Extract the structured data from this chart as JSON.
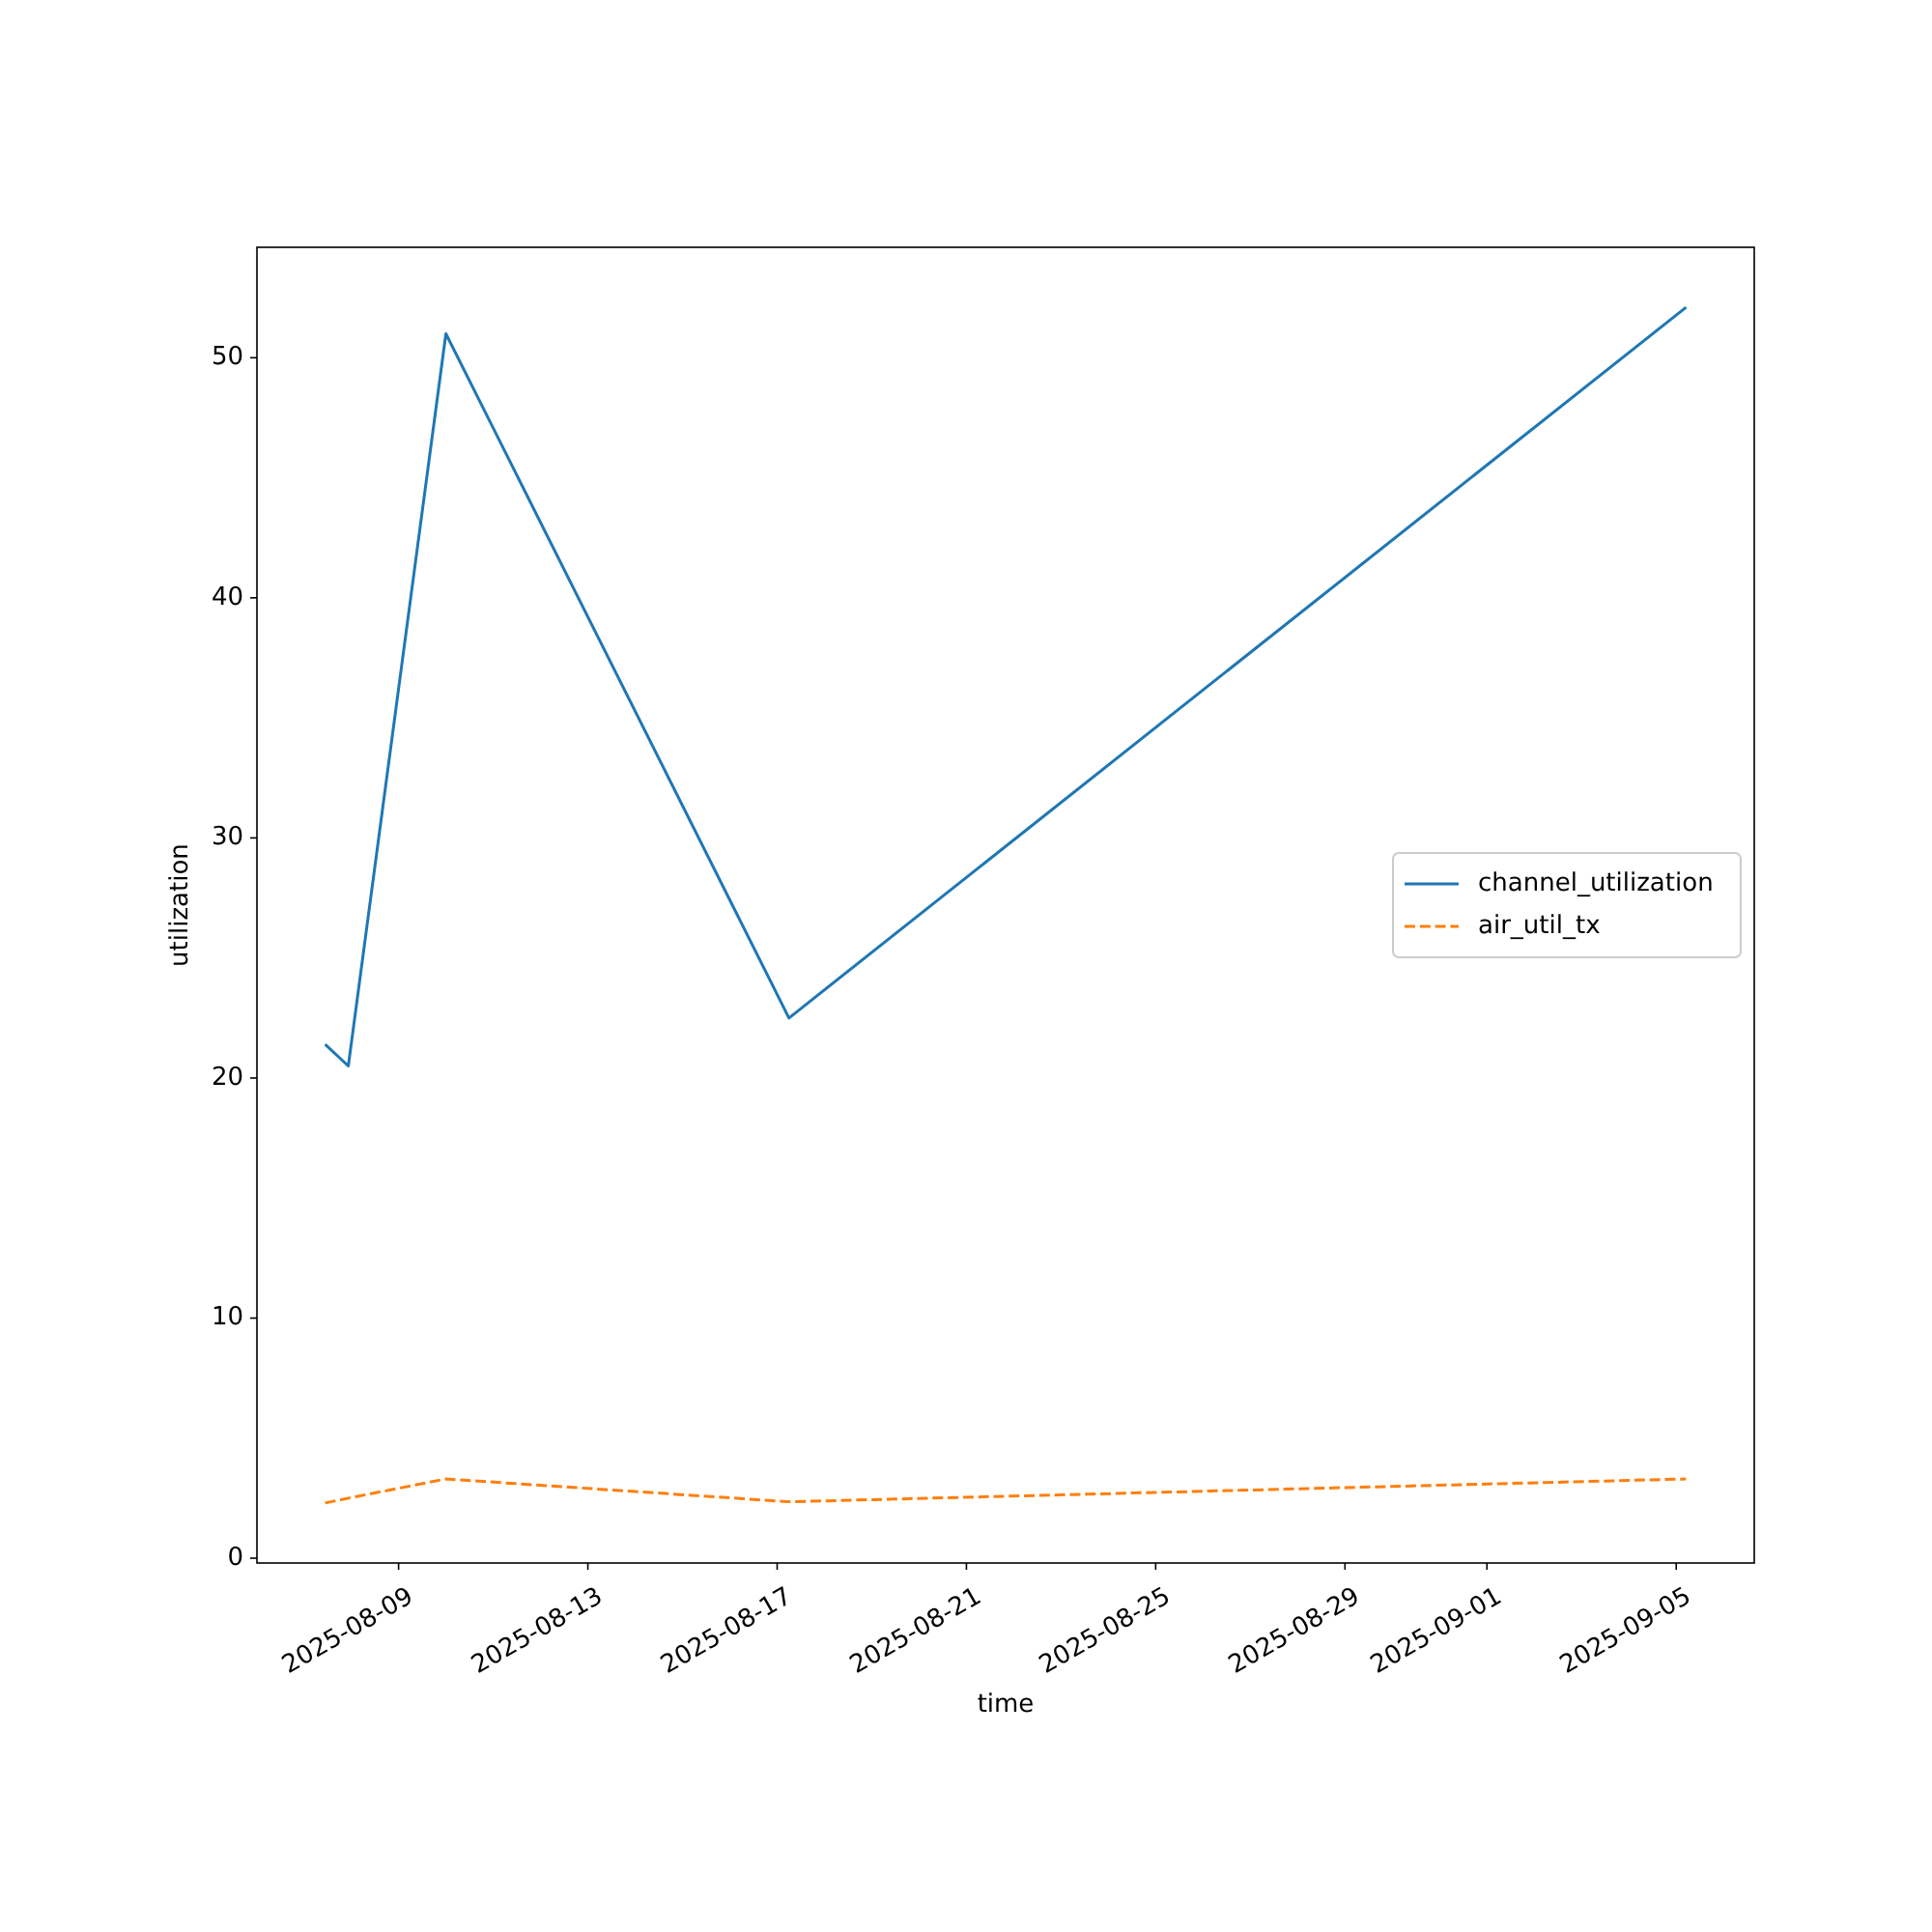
{
  "chart_data": {
    "type": "line",
    "xlabel": "time",
    "ylabel": "utilization",
    "x": [
      "2025-08-07T10:45",
      "2025-08-07T22:30",
      "2025-08-10T00:00",
      "2025-08-17T06:00",
      "2025-09-05T05:00"
    ],
    "series": [
      {
        "name": "channel_utilization",
        "color": "#1f77b4",
        "line_style": "solid",
        "values": [
          21.4,
          20.5,
          51.0,
          22.5,
          52.1
        ]
      },
      {
        "name": "air_util_tx",
        "color": "#ff7f0e",
        "line_style": "dashed",
        "values": [
          2.3,
          2.5,
          3.3,
          2.35,
          3.3
        ]
      }
    ],
    "xlim": [
      "2025-08-06T00:10",
      "2025-09-06T15:35"
    ],
    "ylim": [
      -0.2,
      54.6
    ],
    "xticks": [
      "2025-08-09",
      "2025-08-13",
      "2025-08-17",
      "2025-08-21",
      "2025-08-25",
      "2025-08-29",
      "2025-09-01",
      "2025-09-05"
    ],
    "yticks": [
      0,
      10,
      20,
      30,
      40,
      50
    ],
    "legend": "right",
    "grid": false
  }
}
